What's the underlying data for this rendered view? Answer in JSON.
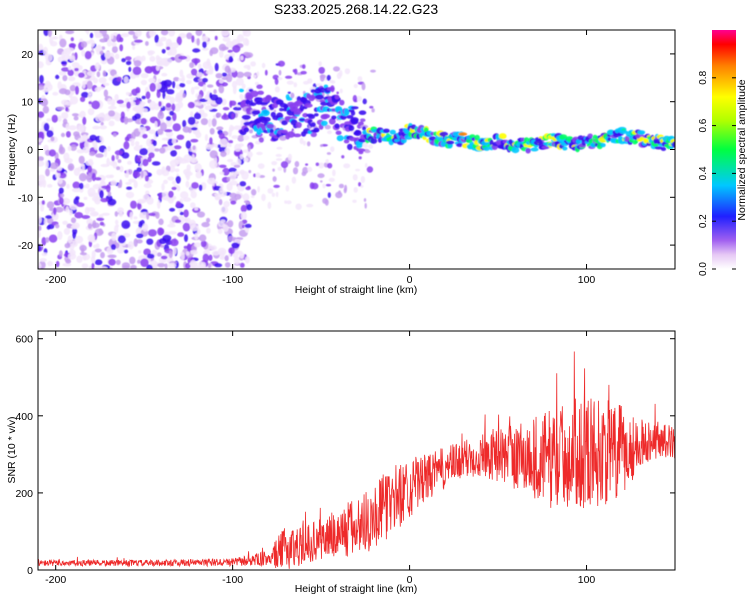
{
  "figure_title": "S233.2025.268.14.22.G23",
  "chart_data": [
    {
      "type": "heatmap",
      "title": "S233.2025.268.14.22.G23",
      "xlabel": "Height of straight line (km)",
      "ylabel": "Frequency (Hz)",
      "xlim": [
        -210,
        150
      ],
      "ylim": [
        -25,
        25
      ],
      "xticks": [
        -200,
        -100,
        0,
        100
      ],
      "yticks": [
        -20,
        -10,
        0,
        10,
        20
      ],
      "ridge": {
        "x": [
          -95,
          -85,
          -75,
          -65,
          -55,
          -45,
          -35,
          -25,
          -15,
          -5,
          0,
          10,
          20,
          30,
          40,
          50,
          60,
          70,
          80,
          90,
          100,
          110,
          120,
          130,
          140,
          150
        ],
        "frequency": [
          8,
          8,
          6,
          7,
          8,
          9,
          5,
          3,
          3,
          2.5,
          4,
          3,
          2,
          2,
          1,
          2,
          1,
          1,
          2,
          1,
          1.5,
          2,
          3,
          2.5,
          1.5,
          1
        ]
      },
      "colorbar": {
        "label": "Normalized spectral amplitude",
        "range": [
          0,
          1
        ],
        "ticks": [
          "0.0",
          "0.2",
          "0.4",
          "0.6",
          "0.8"
        ]
      }
    },
    {
      "type": "line",
      "xlabel": "Height of straight line (km)",
      "ylabel": "SNR (10 * v/v)",
      "xlim": [
        -210,
        150
      ],
      "ylim": [
        0,
        620
      ],
      "xticks": [
        -200,
        -100,
        0,
        100
      ],
      "yticks": [
        0,
        200,
        400,
        600
      ],
      "series": [
        {
          "name": "SNR",
          "color": "#ee2a2a",
          "envelope": {
            "x": [
              -210,
              -150,
              -100,
              -80,
              -70,
              -60,
              -50,
              -40,
              -30,
              -20,
              -10,
              0,
              10,
              20,
              30,
              40,
              50,
              60,
              70,
              80,
              90,
              100,
              110,
              120,
              130,
              140,
              150
            ],
            "baseline": [
              18,
              18,
              20,
              30,
              55,
              65,
              80,
              95,
              110,
              140,
              180,
              215,
              240,
              265,
              285,
              300,
              300,
              295,
              290,
              290,
              300,
              310,
              305,
              300,
              330,
              340,
              330
            ],
            "spread": [
              8,
              8,
              10,
              20,
              60,
              50,
              55,
              70,
              80,
              85,
              90,
              80,
              60,
              55,
              50,
              60,
              70,
              90,
              110,
              130,
              140,
              150,
              140,
              130,
              60,
              50,
              40
            ]
          }
        }
      ]
    }
  ]
}
